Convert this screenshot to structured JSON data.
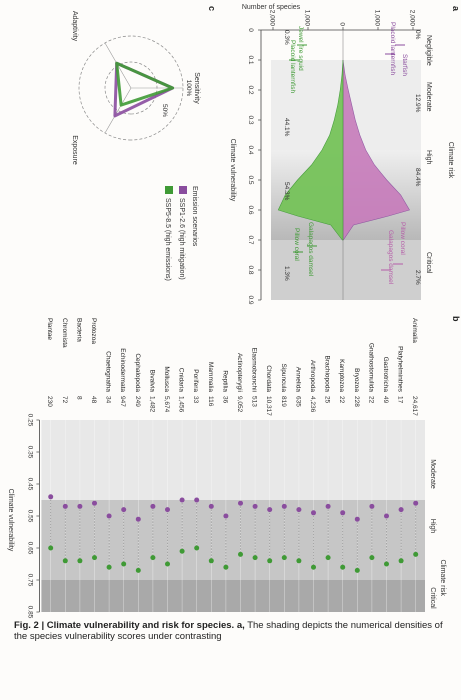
{
  "panel_labels": {
    "a": "a",
    "b": "b",
    "c": "c"
  },
  "panel_a": {
    "risk_header": "Climate risk",
    "risk_levels": [
      "Negligible",
      "Moderate",
      "High",
      "Critical"
    ],
    "ylabel": "Number of species",
    "yticks": [
      "2,000",
      "1,000",
      "0",
      "1,000",
      "2,000"
    ],
    "xlabel": "Climate vulnerability",
    "xticks": [
      "0",
      "0.1",
      "0.2",
      "0.3",
      "0.4",
      "0.5",
      "0.6",
      "0.7",
      "0.8",
      "0.9"
    ],
    "percent_labels": [
      "0%",
      "12.9%",
      "84.4%",
      "2.7%",
      "0.3%",
      "44.1%",
      "54.3%",
      "1.3%"
    ],
    "species": {
      "starfish": "Starfish",
      "placoid_upper": "Placoid lanternfish",
      "pillow_coral_upper": "Pillow coral",
      "galapagos_upper": "Galapagos damsel",
      "jewel_squid": "Jewel fire squid",
      "placoid_lower": "Placoid lanternfish",
      "galapagos_lower": "Galapagos damsel",
      "pillow_coral_lower": "Pillow coral"
    },
    "colors": {
      "ssp1": "#8a4d9e",
      "ssp5": "#3f9a35",
      "magenta": "#b55ea8",
      "green": "#6dbf55",
      "grey": "#c9c9c9"
    }
  },
  "panel_b": {
    "risk_header": "Climate risk",
    "risk_levels": [
      "Moderate",
      "High",
      "Critical"
    ],
    "xlabel": "Climate vulnerability",
    "xticks": [
      "0.25",
      "0.35",
      "0.45",
      "0.55",
      "0.65",
      "0.75",
      "0.85"
    ],
    "rows": [
      {
        "group": "Animalia",
        "name": "",
        "count": "24,617"
      },
      {
        "group": "",
        "name": "Platyhelminthes",
        "count": "17"
      },
      {
        "group": "",
        "name": "Gastrotricha",
        "count": "49"
      },
      {
        "group": "",
        "name": "Gnathostomulida",
        "count": "22"
      },
      {
        "group": "",
        "name": "Bryozoa",
        "count": "228"
      },
      {
        "group": "",
        "name": "Kamptozoa",
        "count": "22"
      },
      {
        "group": "",
        "name": "Brachiopoda",
        "count": "25"
      },
      {
        "group": "",
        "name": "Arthropoda",
        "count": "4,236"
      },
      {
        "group": "",
        "name": "Annelida",
        "count": "635"
      },
      {
        "group": "",
        "name": "Sipuncula",
        "count": "819"
      },
      {
        "group": "",
        "name": "Chordata",
        "count": "10,317"
      },
      {
        "group": "",
        "name": "Elasmobranchii",
        "count": "513"
      },
      {
        "group": "",
        "name": "Actinopterygii",
        "count": "9,052"
      },
      {
        "group": "",
        "name": "Reptilia",
        "count": "36"
      },
      {
        "group": "",
        "name": "Mammalia",
        "count": "116"
      },
      {
        "group": "",
        "name": "Porifera",
        "count": "33"
      },
      {
        "group": "",
        "name": "Cnidaria",
        "count": "1,456"
      },
      {
        "group": "",
        "name": "Mollusca",
        "count": "5,674"
      },
      {
        "group": "",
        "name": "Bivalvia",
        "count": "1,482"
      },
      {
        "group": "",
        "name": "Cephalopoda",
        "count": "249"
      },
      {
        "group": "",
        "name": "Echinodermata",
        "count": "947"
      },
      {
        "group": "",
        "name": "Chaetognatha",
        "count": "34"
      },
      {
        "group": "Protozoa",
        "name": "",
        "count": "48"
      },
      {
        "group": "Bacteria",
        "name": "",
        "count": "8"
      },
      {
        "group": "Chromista",
        "name": "",
        "count": "72"
      },
      {
        "group": "Plantae",
        "name": "",
        "count": "230"
      }
    ]
  },
  "panel_c": {
    "axes": [
      "Sensitivity",
      "Exposure",
      "Adaptivity"
    ],
    "ring_labels": [
      "100%",
      "50%"
    ],
    "legend_title": "Emission scenarios",
    "legend": [
      "SSP1-2.6 (high mitigation)",
      "SSP5-8.5 (high emissions)"
    ]
  },
  "caption": {
    "bold": "Fig. 2 | Climate vulnerability and risk for species. a,",
    "text": " The shading depicts the numerical densities of the species vulnerability scores under contrasting"
  },
  "chart_data": [
    {
      "type": "area",
      "title": "",
      "xlabel": "Climate vulnerability",
      "ylabel": "Number of species",
      "xlim": [
        0,
        0.9
      ],
      "ylim": [
        -2000,
        2000
      ],
      "x": [
        0.1,
        0.15,
        0.2,
        0.25,
        0.3,
        0.35,
        0.4,
        0.45,
        0.5,
        0.55,
        0.6,
        0.62,
        0.65,
        0.7
      ],
      "series": [
        {
          "name": "SSP1-2.6 (high mitigation)",
          "values": [
            0,
            60,
            150,
            250,
            350,
            480,
            650,
            900,
            1250,
            1650,
            1900,
            1300,
            300,
            10
          ]
        },
        {
          "name": "SSP5-8.5 (high emissions)",
          "values": [
            0,
            30,
            80,
            150,
            250,
            380,
            600,
            900,
            1300,
            1650,
            1850,
            1300,
            350,
            20
          ]
        }
      ],
      "risk_levels": [
        "Negligible",
        "Moderate",
        "High",
        "Critical"
      ],
      "risk_shares_ssp1": {
        "Negligible": "0%",
        "Moderate": "12.9%",
        "High": "84.4%",
        "Critical": "2.7%"
      },
      "risk_shares_ssp5": {
        "Negligible": "0.3%",
        "Moderate": "44.1%",
        "High": "54.3%",
        "Critical": "1.3%"
      }
    },
    {
      "type": "scatter",
      "title": "",
      "xlabel": "Climate vulnerability",
      "xlim": [
        0.25,
        0.85
      ],
      "categories": [
        "Animalia",
        "Platyhelminthes",
        "Gastrotricha",
        "Gnathostomulida",
        "Bryozoa",
        "Kamptozoa",
        "Brachiopoda",
        "Arthropoda",
        "Annelida",
        "Sipuncula",
        "Chordata",
        "Elasmobranchii",
        "Actinopterygii",
        "Reptilia",
        "Mammalia",
        "Porifera",
        "Cnidaria",
        "Mollusca",
        "Bivalvia",
        "Cephalopoda",
        "Echinodermata",
        "Chaetognatha",
        "Protozoa",
        "Bacteria",
        "Chromista",
        "Plantae"
      ],
      "series": [
        {
          "name": "SSP1-2.6 (high mitigation)",
          "values": [
            0.51,
            0.53,
            0.55,
            0.52,
            0.56,
            0.54,
            0.52,
            0.54,
            0.53,
            0.52,
            0.53,
            0.52,
            0.51,
            0.55,
            0.52,
            0.5,
            0.5,
            0.53,
            0.52,
            0.56,
            0.53,
            0.55,
            0.51,
            0.52,
            0.52,
            0.49
          ]
        },
        {
          "name": "SSP5-8.5 (high emissions)",
          "values": [
            0.67,
            0.69,
            0.7,
            0.68,
            0.72,
            0.71,
            0.68,
            0.71,
            0.69,
            0.68,
            0.69,
            0.68,
            0.67,
            0.71,
            0.69,
            0.65,
            0.66,
            0.7,
            0.68,
            0.72,
            0.7,
            0.71,
            0.68,
            0.69,
            0.69,
            0.65
          ]
        }
      ]
    },
    {
      "type": "radar",
      "categories": [
        "Sensitivity",
        "Exposure",
        "Adaptivity"
      ],
      "ring_labels": [
        "100%",
        "50%"
      ],
      "series": [
        {
          "name": "SSP1-2.6 (high mitigation)",
          "values": [
            80,
            62,
            55
          ]
        },
        {
          "name": "SSP5-8.5 (high emissions)",
          "values": [
            80,
            38,
            55
          ]
        }
      ]
    }
  ]
}
